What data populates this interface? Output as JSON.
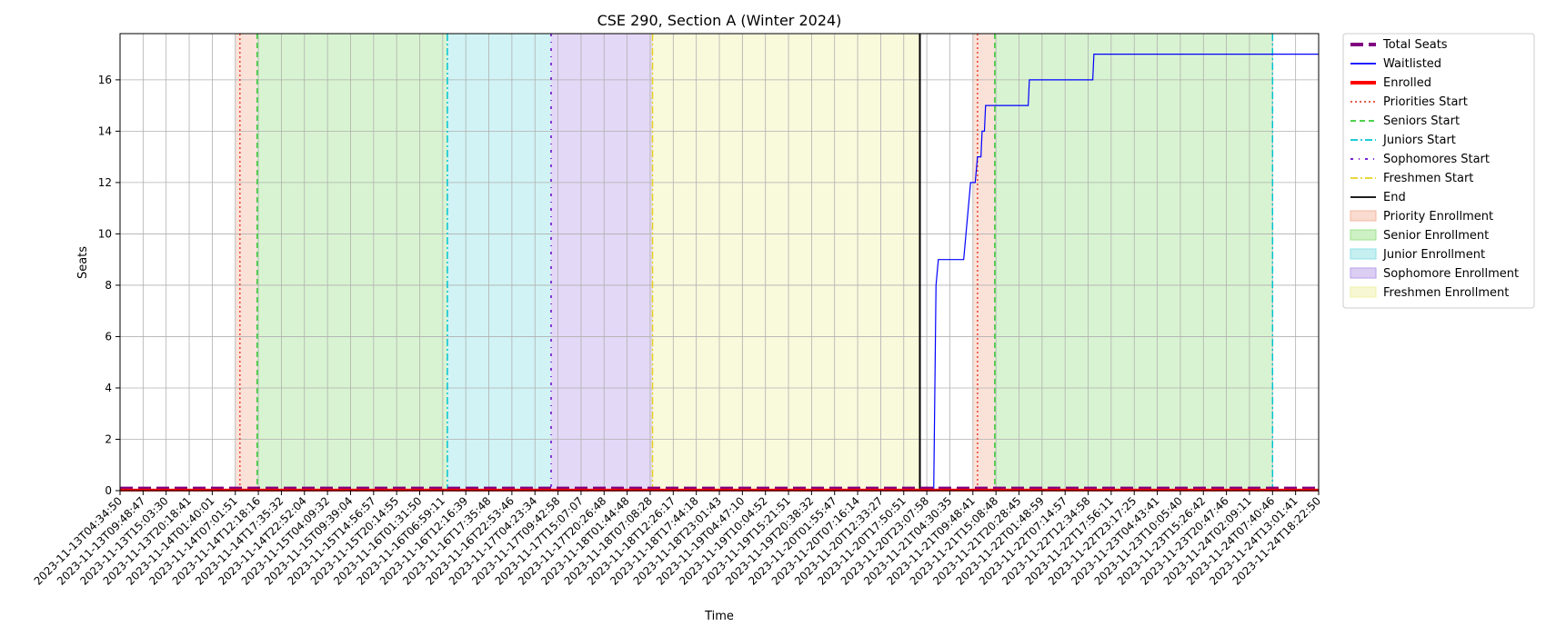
{
  "chart_data": {
    "type": "line",
    "title": "CSE 290, Section A (Winter 2024)",
    "xlabel": "Time",
    "ylabel": "Seats",
    "ylim": [
      0,
      17.8
    ],
    "y_ticks": [
      0,
      2,
      4,
      6,
      8,
      10,
      12,
      14,
      16
    ],
    "x_tick_labels": [
      "2023-11-13T04:34:50",
      "2023-11-13T09:48:47",
      "2023-11-13T15:03:30",
      "2023-11-13T20:18:41",
      "2023-11-14T01:40:01",
      "2023-11-14T07:01:51",
      "2023-11-14T12:18:16",
      "2023-11-14T17:35:32",
      "2023-11-14T22:52:04",
      "2023-11-15T04:09:32",
      "2023-11-15T09:39:04",
      "2023-11-15T14:56:57",
      "2023-11-15T20:14:55",
      "2023-11-16T01:31:50",
      "2023-11-16T06:59:11",
      "2023-11-16T12:16:39",
      "2023-11-16T17:35:48",
      "2023-11-16T22:53:46",
      "2023-11-17T04:23:34",
      "2023-11-17T09:42:58",
      "2023-11-17T15:07:07",
      "2023-11-17T20:26:48",
      "2023-11-18T01:44:48",
      "2023-11-18T07:08:28",
      "2023-11-18T12:26:17",
      "2023-11-18T17:44:18",
      "2023-11-18T23:01:43",
      "2023-11-19T04:47:10",
      "2023-11-19T10:04:52",
      "2023-11-19T15:21:51",
      "2023-11-19T20:38:32",
      "2023-11-20T01:55:47",
      "2023-11-20T07:16:14",
      "2023-11-20T12:33:27",
      "2023-11-20T17:50:51",
      "2023-11-20T23:07:58",
      "2023-11-21T04:30:35",
      "2023-11-21T09:48:41",
      "2023-11-21T15:08:48",
      "2023-11-21T20:28:45",
      "2023-11-22T01:48:59",
      "2023-11-22T07:14:57",
      "2023-11-22T12:34:58",
      "2023-11-22T17:56:11",
      "2023-11-22T23:17:25",
      "2023-11-23T04:43:41",
      "2023-11-23T10:05:40",
      "2023-11-23T15:26:42",
      "2023-11-23T20:47:46",
      "2023-11-24T02:09:11",
      "2023-11-24T07:40:46",
      "2023-11-24T13:01:41",
      "2023-11-24T18:22:50"
    ],
    "x_range": [
      0,
      52
    ],
    "series": [
      {
        "name": "Total Seats",
        "color": "#800080",
        "style": "dashed-thick",
        "points": [
          [
            0,
            0.1
          ],
          [
            52,
            0.1
          ]
        ]
      },
      {
        "name": "Waitlisted",
        "color": "#0000ff",
        "style": "step",
        "points": [
          [
            0,
            0
          ],
          [
            35.3,
            0
          ],
          [
            35.4,
            8
          ],
          [
            35.5,
            9
          ],
          [
            36.6,
            9
          ],
          [
            36.7,
            10
          ],
          [
            36.8,
            11
          ],
          [
            36.9,
            12
          ],
          [
            37.1,
            12
          ],
          [
            37.2,
            13
          ],
          [
            37.35,
            13
          ],
          [
            37.4,
            14
          ],
          [
            37.5,
            14
          ],
          [
            37.55,
            15
          ],
          [
            39.4,
            15
          ],
          [
            39.45,
            16
          ],
          [
            42.2,
            16
          ],
          [
            42.25,
            17
          ],
          [
            52,
            17
          ]
        ]
      },
      {
        "name": "Enrolled",
        "color": "#ff0000",
        "style": "solid-thick",
        "points": [
          [
            0,
            0.02
          ],
          [
            52,
            0.02
          ]
        ]
      }
    ],
    "vertical_markers": [
      {
        "name": "Priorities Start",
        "color": "#e8442f",
        "style": "dotted",
        "x": [
          5.2,
          37.2
        ]
      },
      {
        "name": "Seniors Start",
        "color": "#33cc33",
        "style": "dashed",
        "x": [
          5.95,
          37.95
        ]
      },
      {
        "name": "Juniors Start",
        "color": "#00c5d1",
        "style": "dashdot",
        "x": [
          14.2,
          50.0
        ]
      },
      {
        "name": "Sophomores Start",
        "color": "#6600cc",
        "style": "loosely-dashdot",
        "x": [
          18.7
        ]
      },
      {
        "name": "Freshmen Start",
        "color": "#e6d020",
        "style": "dashdot",
        "x": [
          23.1
        ]
      },
      {
        "name": "End",
        "color": "#000000",
        "style": "solid",
        "x": [
          34.7
        ]
      }
    ],
    "shaded_regions": [
      {
        "name": "Priority Enrollment",
        "color": "#f4b7a0",
        "from": 5.0,
        "to": 5.95
      },
      {
        "name": "Senior Enrollment",
        "color": "#9de28c",
        "from": 5.95,
        "to": 14.2
      },
      {
        "name": "Junior Enrollment",
        "color": "#8de0e6",
        "from": 14.2,
        "to": 18.7
      },
      {
        "name": "Sophomore Enrollment",
        "color": "#b99ee8",
        "from": 18.7,
        "to": 23.1
      },
      {
        "name": "Freshmen Enrollment",
        "color": "#f0f0a8",
        "from": 23.1,
        "to": 34.7
      },
      {
        "name": "Priority Enrollment",
        "color": "#f4b7a0",
        "from": 37.0,
        "to": 37.95
      },
      {
        "name": "Senior Enrollment",
        "color": "#9de28c",
        "from": 37.95,
        "to": 50.0
      }
    ],
    "legend": {
      "placement": "outside-right-top",
      "items": [
        {
          "label": "Total Seats",
          "kind": "line",
          "color": "#800080",
          "style": "dashed-thick"
        },
        {
          "label": "Waitlisted",
          "kind": "line",
          "color": "#0000ff",
          "style": "solid"
        },
        {
          "label": "Enrolled",
          "kind": "line",
          "color": "#ff0000",
          "style": "solid-thick"
        },
        {
          "label": "Priorities Start",
          "kind": "line",
          "color": "#e8442f",
          "style": "dotted"
        },
        {
          "label": "Seniors Start",
          "kind": "line",
          "color": "#33cc33",
          "style": "dashed"
        },
        {
          "label": "Juniors Start",
          "kind": "line",
          "color": "#00c5d1",
          "style": "dashdot"
        },
        {
          "label": "Sophomores Start",
          "kind": "line",
          "color": "#6600cc",
          "style": "loosely-dashdot"
        },
        {
          "label": "Freshmen Start",
          "kind": "line",
          "color": "#e6d020",
          "style": "dashdot"
        },
        {
          "label": "End",
          "kind": "line",
          "color": "#000000",
          "style": "solid"
        },
        {
          "label": "Priority Enrollment",
          "kind": "patch",
          "color": "#f4b7a0"
        },
        {
          "label": "Senior Enrollment",
          "kind": "patch",
          "color": "#9de28c"
        },
        {
          "label": "Junior Enrollment",
          "kind": "patch",
          "color": "#8de0e6"
        },
        {
          "label": "Sophomore Enrollment",
          "kind": "patch",
          "color": "#b99ee8"
        },
        {
          "label": "Freshmen Enrollment",
          "kind": "patch",
          "color": "#f0f0a8"
        }
      ]
    },
    "grid": true
  }
}
